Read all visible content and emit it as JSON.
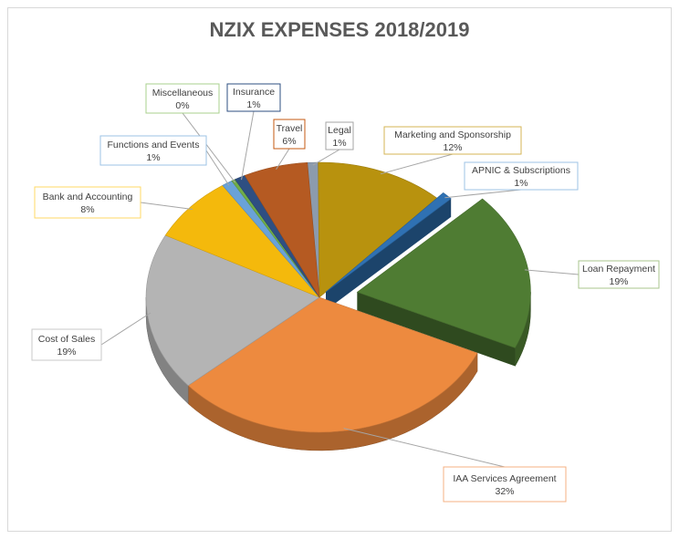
{
  "chart_data": {
    "type": "pie",
    "title": "NZIX EXPENSES 2018/2019",
    "slices": [
      {
        "label": "Legal",
        "value": 1,
        "percent_label": "1%",
        "color": "#8c9bad"
      },
      {
        "label": "Marketing and Sponsorship",
        "value": 12,
        "percent_label": "12%",
        "color": "#b8920e"
      },
      {
        "label": "APNIC & Subscriptions",
        "value": 1,
        "percent_label": "1%",
        "color": "#2f71b3"
      },
      {
        "label": "Loan Repayment",
        "value": 19,
        "percent_label": "19%",
        "color": "#4f7c33"
      },
      {
        "label": "IAA Services Agreement",
        "value": 32,
        "percent_label": "32%",
        "color": "#ed8a3f"
      },
      {
        "label": "Cost of Sales",
        "value": 19,
        "percent_label": "19%",
        "color": "#b4b4b4"
      },
      {
        "label": "Bank and Accounting",
        "value": 8,
        "percent_label": "8%",
        "color": "#f4b90c"
      },
      {
        "label": "Functions and Events",
        "value": 1,
        "percent_label": "1%",
        "color": "#6aa2d8"
      },
      {
        "label": "Miscellaneous",
        "value": 0,
        "percent_label": "0%",
        "color": "#70ad47"
      },
      {
        "label": "Insurance",
        "value": 1,
        "percent_label": "1%",
        "color": "#2e4f82"
      },
      {
        "label": "Travel",
        "value": 6,
        "percent_label": "6%",
        "color": "#b55a22"
      }
    ],
    "legend": "none",
    "style": "3d-exploded"
  }
}
